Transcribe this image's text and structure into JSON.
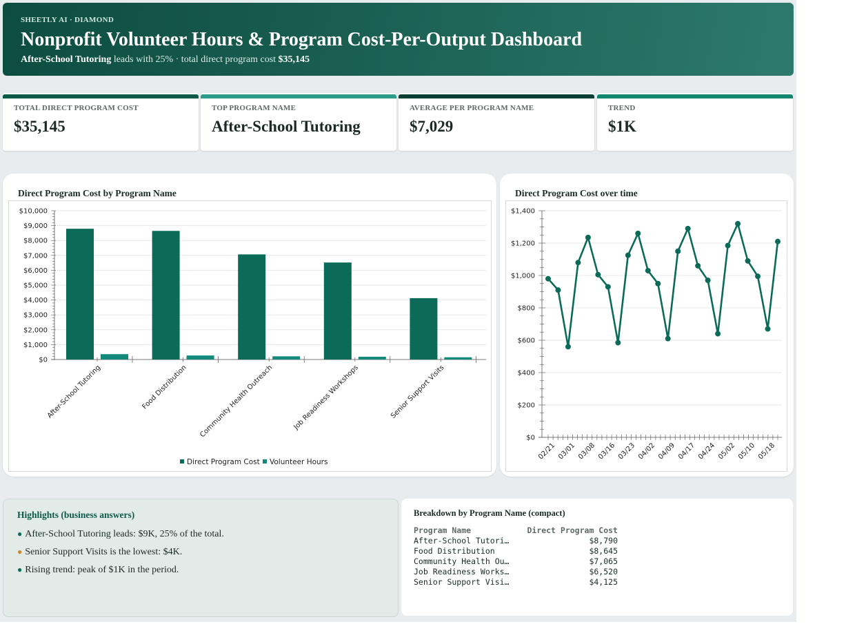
{
  "header": {
    "brand": "SHEETLY AI · DIAMOND",
    "title": "Nonprofit Volunteer Hours & Program Cost-Per-Output Dashboard",
    "subtitle_lead": "After-School Tutoring",
    "subtitle_mid": " leads with 25% · total direct program cost ",
    "subtitle_total": "$35,145"
  },
  "kpis": [
    {
      "label": "TOTAL DIRECT PROGRAM COST",
      "value": "$35,145",
      "color": "#0b5a47"
    },
    {
      "label": "TOP PROGRAM NAME",
      "value": "After-School Tutoring",
      "color": "#2e9c8b"
    },
    {
      "label": "AVERAGE PER PROGRAM NAME",
      "value": "$7,029",
      "color": "#083f34"
    },
    {
      "label": "TREND",
      "value": "$1K",
      "color": "#14866f"
    }
  ],
  "bar_card": {
    "title": "Direct Program Cost by Program Name"
  },
  "line_card": {
    "title": "Direct Program Cost over time"
  },
  "chart_data": [
    {
      "type": "bar",
      "title": "Direct Program Cost by Program Name",
      "categories": [
        "After-School Tutoring",
        "Food Distribution",
        "Community Health Outreach",
        "Job Readiness Workshops",
        "Senior Support Visits"
      ],
      "series": [
        {
          "name": "Direct Program Cost",
          "values": [
            8790,
            8645,
            7065,
            6520,
            4125
          ],
          "color": "#0b6b58"
        },
        {
          "name": "Volunteer Hours",
          "values": [
            360,
            270,
            215,
            185,
            150
          ],
          "color": "#12897a"
        }
      ],
      "ylim": [
        0,
        10000
      ],
      "yticks": [
        "$0",
        "$1,000",
        "$2,000",
        "$3,000",
        "$4,000",
        "$5,000",
        "$6,000",
        "$7,000",
        "$8,000",
        "$9,000",
        "$10,000"
      ],
      "legend": "bottom",
      "grid": true
    },
    {
      "type": "line",
      "title": "Direct Program Cost over time",
      "x_ticks": [
        "02/21",
        "03/01",
        "03/08",
        "03/16",
        "03/23",
        "04/02",
        "04/09",
        "04/17",
        "04/24",
        "05/02",
        "05/10",
        "05/18"
      ],
      "values": [
        980,
        910,
        560,
        1080,
        1235,
        1005,
        930,
        585,
        1125,
        1260,
        1030,
        950,
        610,
        1150,
        1290,
        1060,
        970,
        640,
        1185,
        1320,
        1090,
        995,
        670,
        1210
      ],
      "ylim": [
        0,
        1400
      ],
      "yticks": [
        "$0",
        "$200",
        "$400",
        "$600",
        "$800",
        "$1,000",
        "$1,200",
        "$1,400"
      ],
      "color": "#0b6b58",
      "grid": true
    }
  ],
  "highlights": {
    "title": "Highlights (business answers)",
    "items": [
      {
        "text": "After-School Tutoring leads: $9K, 25% of the total.",
        "dot_color": "#0b6b58"
      },
      {
        "text": "Senior Support Visits is the lowest: $4K.",
        "dot_color": "#c98a2b"
      },
      {
        "text": "Rising trend: peak of $1K in the period.",
        "dot_color": "#0b6b58"
      }
    ]
  },
  "breakdown": {
    "title": "Breakdown by Program Name (compact)",
    "headers": [
      "Program Name",
      "Direct Program Cost"
    ],
    "rows": [
      [
        "After-School Tutori…",
        "$8,790"
      ],
      [
        "Food Distribution",
        "$8,645"
      ],
      [
        "Community Health Ou…",
        "$7,065"
      ],
      [
        "Job Readiness Works…",
        "$6,520"
      ],
      [
        "Senior Support Visi…",
        "$4,125"
      ]
    ]
  }
}
